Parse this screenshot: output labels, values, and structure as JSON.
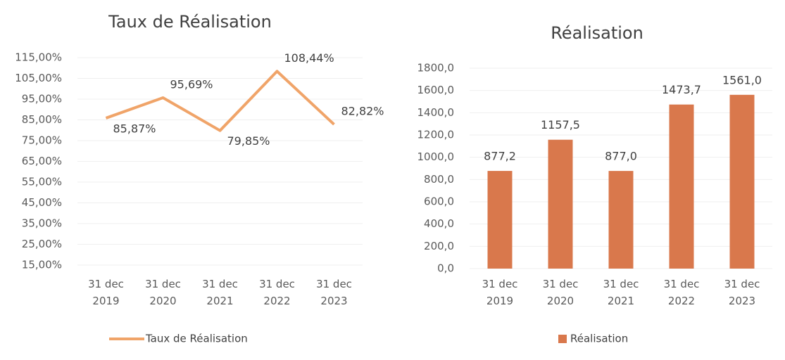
{
  "chart_data": [
    {
      "type": "line",
      "title": "Taux de Réalisation",
      "categories": [
        "31 dec 2019",
        "31 dec 2020",
        "31 dec 2021",
        "31 dec 2022",
        "31 dec 2023"
      ],
      "series": [
        {
          "name": "Taux de Réalisation",
          "color": "#f0a469",
          "values": [
            85.87,
            95.69,
            79.85,
            108.44,
            82.82
          ],
          "value_labels": [
            "85,87%",
            "95,69%",
            "79,85%",
            "108,44%",
            "82,82%"
          ]
        }
      ],
      "ylim": [
        15,
        115
      ],
      "yticks": [
        {
          "value": 15,
          "label": "15,00%"
        },
        {
          "value": 25,
          "label": "25,00%"
        },
        {
          "value": 35,
          "label": "35,00%"
        },
        {
          "value": 45,
          "label": "45,00%"
        },
        {
          "value": 55,
          "label": "55,00%"
        },
        {
          "value": 65,
          "label": "65,00%"
        },
        {
          "value": 75,
          "label": "75,00%"
        },
        {
          "value": 85,
          "label": "85,00%"
        },
        {
          "value": 95,
          "label": "95,00%"
        },
        {
          "value": 105,
          "label": "105,00%"
        },
        {
          "value": 115,
          "label": "115,00%"
        }
      ],
      "grid": true,
      "legend": "bottom"
    },
    {
      "type": "bar",
      "title": "Réalisation",
      "categories": [
        "31 dec 2019",
        "31 dec 2020",
        "31 dec 2021",
        "31 dec 2022",
        "31 dec 2023"
      ],
      "series": [
        {
          "name": "Réalisation",
          "color": "#d9784c",
          "values": [
            877.2,
            1157.5,
            877.0,
            1473.7,
            1561.0
          ],
          "value_labels": [
            "877,2",
            "1157,5",
            "877,0",
            "1473,7",
            "1561,0"
          ]
        }
      ],
      "ylim": [
        0,
        1800
      ],
      "yticks": [
        {
          "value": 0,
          "label": "0,0"
        },
        {
          "value": 200,
          "label": "200,0"
        },
        {
          "value": 400,
          "label": "400,0"
        },
        {
          "value": 600,
          "label": "600,0"
        },
        {
          "value": 800,
          "label": "800,0"
        },
        {
          "value": 1000,
          "label": "1000,0"
        },
        {
          "value": 1200,
          "label": "1200,0"
        },
        {
          "value": 1400,
          "label": "1400,0"
        },
        {
          "value": 1600,
          "label": "1600,0"
        },
        {
          "value": 1800,
          "label": "1800,0"
        }
      ],
      "grid": true,
      "legend": "bottom"
    }
  ]
}
